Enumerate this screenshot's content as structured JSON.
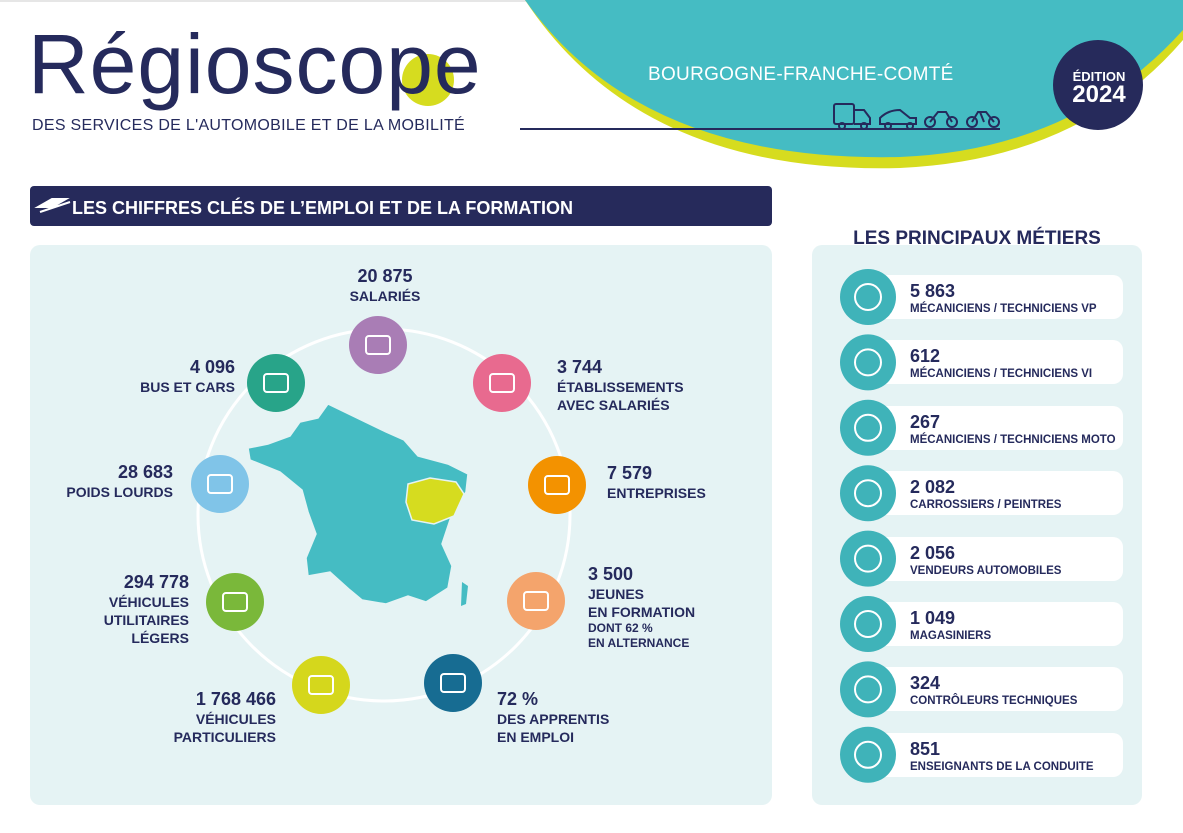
{
  "header": {
    "title": "Régioscope",
    "subtitle": "DES SERVICES DE L'AUTOMOBILE ET DE LA MOBILITÉ",
    "region": "BOURGOGNE-FRANCHE-COMTÉ",
    "edition": {
      "label": "ÉDITION",
      "year": "2024"
    }
  },
  "key_section": {
    "title": "LES CHIFFRES CLÉS DE L’EMPLOI ET DE LA FORMATION",
    "items": [
      {
        "value": "20 875",
        "lines": [
          "SALARIÉS"
        ],
        "color": "#a97db5"
      },
      {
        "value": "3 744",
        "lines": [
          "ÉTABLISSEMENTS",
          "AVEC SALARIÉS"
        ],
        "color": "#e86a8f"
      },
      {
        "value": "7 579",
        "lines": [
          "ENTREPRISES"
        ],
        "color": "#f39200"
      },
      {
        "value": "3 500",
        "lines": [
          "JEUNES",
          "EN FORMATION",
          "DONT 62 %",
          "EN ALTERNANCE"
        ],
        "color": "#f4a46c"
      },
      {
        "value": "72 %",
        "lines": [
          "DES APPRENTIS",
          "EN EMPLOI"
        ],
        "color": "#176c92"
      },
      {
        "value": "1 768 466",
        "lines": [
          "VÉHICULES",
          "PARTICULIERS"
        ],
        "color": "#d5d71c"
      },
      {
        "value": "294 778",
        "lines": [
          "VÉHICULES",
          "UTILITAIRES",
          "LÉGERS"
        ],
        "color": "#7ab83a"
      },
      {
        "value": "28 683",
        "lines": [
          "POIDS LOURDS"
        ],
        "color": "#80c4e8"
      },
      {
        "value": "4 096",
        "lines": [
          "BUS ET CARS"
        ],
        "color": "#28a489"
      }
    ]
  },
  "jobs_section": {
    "title": "LES PRINCIPAUX MÉTIERS",
    "items": [
      {
        "value": "5 863",
        "label": "MÉCANICIENS / TECHNICIENS VP"
      },
      {
        "value": "612",
        "label": "MÉCANICIENS / TECHNICIENS VI"
      },
      {
        "value": "267",
        "label": "MÉCANICIENS / TECHNICIENS MOTO"
      },
      {
        "value": "2 082",
        "label": "CARROSSIERS / PEINTRES"
      },
      {
        "value": "2 056",
        "label": "VENDEURS AUTOMOBILES"
      },
      {
        "value": "1 049",
        "label": "MAGASINIERS"
      },
      {
        "value": "324",
        "label": "CONTRÔLEURS TECHNIQUES"
      },
      {
        "value": "851",
        "label": "ENSEIGNANTS DE LA CONDUITE"
      }
    ]
  }
}
